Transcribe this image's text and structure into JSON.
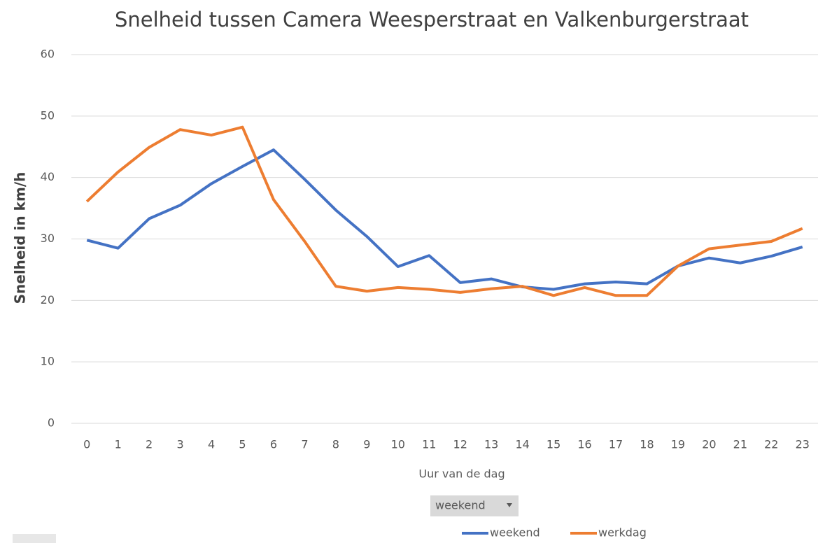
{
  "chart_data": {
    "type": "line",
    "title": "Snelheid tussen Camera Weesperstraat en Valkenburgerstraat",
    "x_label": "Uur van de dag",
    "y_label": "Snelheid in km/h",
    "filter_button": "weekend",
    "categories": [
      "0",
      "1",
      "2",
      "3",
      "4",
      "5",
      "6",
      "7",
      "8",
      "9",
      "10",
      "11",
      "12",
      "13",
      "14",
      "15",
      "16",
      "17",
      "18",
      "19",
      "20",
      "21",
      "22",
      "23"
    ],
    "series": [
      {
        "name": "weekend",
        "color": "#4472c4",
        "values": [
          29.8,
          28.5,
          33.3,
          35.5,
          39,
          41.8,
          44.5,
          39.7,
          34.7,
          30.4,
          25.5,
          27.3,
          22.9,
          23.5,
          22.2,
          21.8,
          22.7,
          23,
          22.7,
          25.6,
          26.9,
          26.1,
          27.2,
          28.7
        ]
      },
      {
        "name": "werkdag",
        "color": "#ed7d31",
        "values": [
          36.1,
          40.9,
          44.9,
          47.8,
          46.9,
          48.2,
          36.4,
          29.6,
          22.3,
          21.5,
          22.1,
          21.8,
          21.3,
          21.9,
          22.3,
          20.8,
          22.1,
          20.8,
          20.8,
          25.6,
          28.4,
          29,
          29.6,
          31.7
        ]
      }
    ],
    "ylim": [
      0,
      60
    ],
    "yticks": [
      0,
      10,
      20,
      30,
      40,
      50,
      60
    ],
    "grid": true
  }
}
